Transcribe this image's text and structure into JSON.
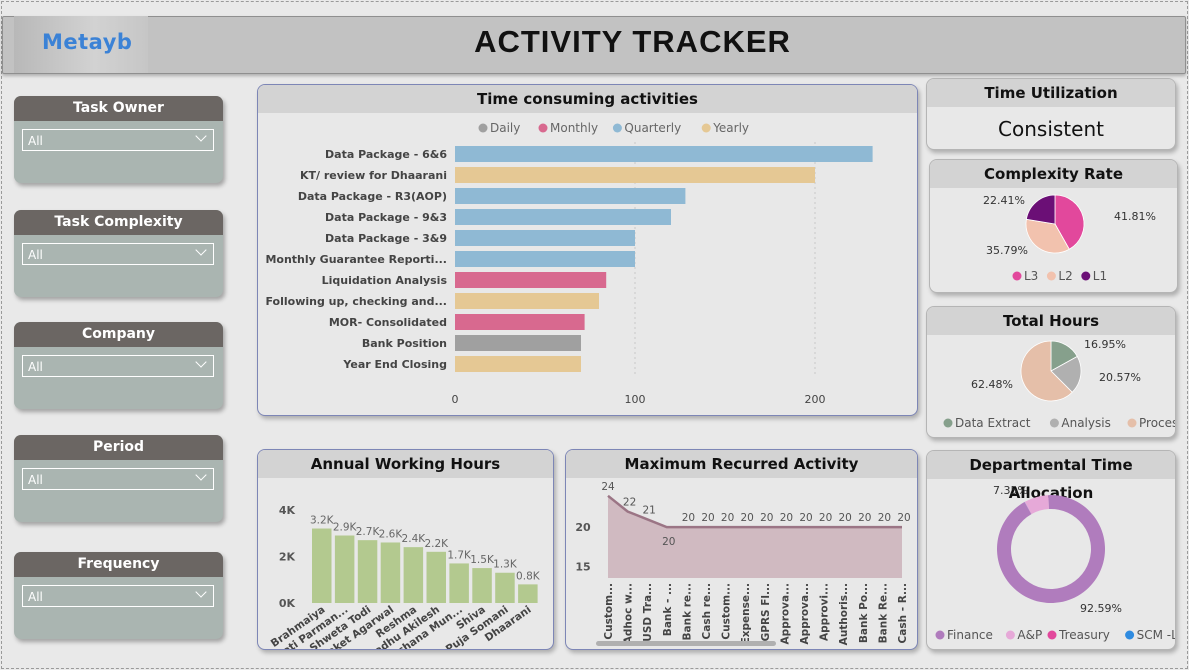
{
  "header": {
    "logo": "Metayb",
    "title": "ACTIVITY TRACKER"
  },
  "slicers": [
    {
      "label": "Task Owner",
      "value": "All"
    },
    {
      "label": "Task Complexity",
      "value": "All"
    },
    {
      "label": "Company",
      "value": "All"
    },
    {
      "label": "Period",
      "value": "All"
    },
    {
      "label": "Frequency",
      "value": "All"
    }
  ],
  "colors": {
    "daily": "#a0a0a0",
    "monthly": "#d8698f",
    "quarterly": "#8fb9d4",
    "yearly": "#e5c894",
    "green_bar": "#b3c98f",
    "area": "#cdb5bd",
    "area_line": "#9b7585"
  },
  "time_consuming": {
    "title": "Time consuming activities",
    "legend": [
      "Daily",
      "Monthly",
      "Quarterly",
      "Yearly"
    ]
  },
  "time_utilization": {
    "title": "Time Utilization",
    "value": "Consistent"
  },
  "complexity": {
    "title": "Complexity Rate",
    "legend": [
      "L3",
      "L2",
      "L1"
    ]
  },
  "total_hours": {
    "title": "Total Hours",
    "legend": [
      "Data Extract",
      "Analysis",
      "Processing"
    ]
  },
  "annual": {
    "title": "Annual Working Hours"
  },
  "recurred": {
    "title": "Maximum Recurred Activity"
  },
  "departmental": {
    "title": "Departmental Time Allocation",
    "legend": [
      "Finance",
      "A&P",
      "Treasury",
      "SCM -Lo..."
    ]
  },
  "chart_data": [
    {
      "type": "bar",
      "title": "Time consuming activities",
      "orientation": "horizontal",
      "categories": [
        "Data Package - 6&6",
        "KT/ review for Dhaarani",
        "Data Package - R3(AOP)",
        "Data Package - 9&3",
        "Data Package - 3&9",
        "Monthly Guarantee Reporti...",
        "Liquidation Analysis",
        "Following up, checking and...",
        "MOR- Consolidated",
        "Bank Position",
        "Year End Closing"
      ],
      "values": [
        232,
        200,
        128,
        120,
        100,
        100,
        84,
        80,
        72,
        70,
        70
      ],
      "frequency": [
        "Quarterly",
        "Yearly",
        "Quarterly",
        "Quarterly",
        "Quarterly",
        "Quarterly",
        "Monthly",
        "Yearly",
        "Monthly",
        "Daily",
        "Yearly"
      ],
      "xticks": [
        "0",
        "100",
        "200"
      ],
      "xlim": [
        0,
        250
      ],
      "grid": true,
      "legend_position": "top"
    },
    {
      "type": "pie",
      "title": "Complexity Rate",
      "categories": [
        "L3",
        "L2",
        "L1"
      ],
      "values": [
        41.81,
        35.79,
        22.41
      ],
      "labels": [
        "41.81%",
        "35.79%",
        "22.41%"
      ],
      "colors": [
        "#e2489c",
        "#f2c2ae",
        "#6b0f76"
      ]
    },
    {
      "type": "pie",
      "title": "Total Hours",
      "categories": [
        "Data Extract",
        "Analysis",
        "Processing"
      ],
      "values": [
        16.95,
        20.57,
        62.48
      ],
      "labels": [
        "16.95%",
        "20.57%",
        "62.48%"
      ],
      "colors": [
        "#86a08c",
        "#b0b0b0",
        "#e5bfa9"
      ]
    },
    {
      "type": "bar",
      "title": "Annual Working Hours",
      "categories": [
        "Brahmaiya",
        "Swati Parman...",
        "Shweta Todi",
        "Saket Agarwal",
        "Reshma",
        "Madhu Akilesh",
        "Archana Mun...",
        "Shiva",
        "Puja Somani",
        "Dhaarani"
      ],
      "values": [
        3200,
        2900,
        2700,
        2600,
        2400,
        2200,
        1700,
        1500,
        1300,
        800
      ],
      "labels": [
        "3.2K",
        "2.9K",
        "2.7K",
        "2.6K",
        "2.4K",
        "2.2K",
        "1.7K",
        "1.5K",
        "1.3K",
        "0.8K"
      ],
      "yticks": [
        "4K",
        "2K",
        "0K"
      ],
      "ylim": [
        0,
        4000
      ]
    },
    {
      "type": "area",
      "title": "Maximum Recurred Activity",
      "categories": [
        "Custom...",
        "Adhoc w...",
        "USD Tra...",
        "Bank - ...",
        "Bank re...",
        "Cash re...",
        "Custom...",
        "Expense...",
        "GPRS Fl...",
        "Approva...",
        "Approva...",
        "Approvi...",
        "Authoris...",
        "Bank Po...",
        "Bank Re...",
        "Cash - R..."
      ],
      "values": [
        24,
        22,
        21,
        20,
        20,
        20,
        20,
        20,
        20,
        20,
        20,
        20,
        20,
        20,
        20,
        20
      ],
      "labels": [
        "24",
        "22",
        "21",
        "20",
        "20",
        "20",
        "20",
        "20",
        "20",
        "20",
        "20",
        "20",
        "20",
        "20",
        "20",
        "20"
      ],
      "yticks": [
        "20",
        "15"
      ],
      "ylim": [
        13.5,
        25
      ]
    },
    {
      "type": "pie",
      "title": "Departmental Time Allocation",
      "donut": true,
      "categories": [
        "Finance",
        "A&P",
        "Treasury",
        "SCM -Lo..."
      ],
      "values": [
        92.59,
        7.35,
        0.03,
        0.03
      ],
      "labels": [
        "92.59%",
        "7.35%"
      ],
      "colors": [
        "#b07cbd",
        "#e6a9d8",
        "#e2489c",
        "#2f8be0"
      ]
    }
  ]
}
